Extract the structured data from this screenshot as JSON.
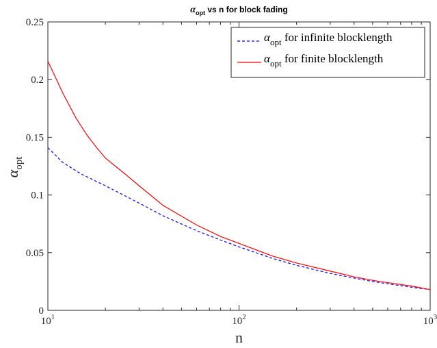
{
  "chart_data": {
    "type": "line",
    "title_alpha": "α",
    "title_sub": "opt",
    "title_rest": " vs n for block fading",
    "xlabel": "n",
    "ylabel_alpha": "α",
    "ylabel_sub": "opt",
    "x_scale": "log",
    "xlim": [
      10,
      1000
    ],
    "ylim": [
      0,
      0.25
    ],
    "grid": false,
    "legend_position": "top-right",
    "x_ticks": [
      {
        "value": 10,
        "base": "10",
        "exp": "1"
      },
      {
        "value": 100,
        "base": "10",
        "exp": "2"
      },
      {
        "value": 1000,
        "base": "10",
        "exp": "3"
      }
    ],
    "y_ticks": [
      {
        "value": 0,
        "label": "0"
      },
      {
        "value": 0.05,
        "label": "0.05"
      },
      {
        "value": 0.1,
        "label": "0.1"
      },
      {
        "value": 0.15,
        "label": "0.15"
      },
      {
        "value": 0.2,
        "label": "0.2"
      },
      {
        "value": 0.25,
        "label": "0.25"
      }
    ],
    "series": [
      {
        "name_alpha": "α",
        "name_sub": "opt",
        "name_rest": " for infinite blocklength",
        "color": "#0000ff",
        "dash": "dashed",
        "x": [
          10,
          12,
          15,
          20,
          30,
          40,
          60,
          80,
          100,
          150,
          200,
          300,
          400,
          500,
          600,
          800,
          1000
        ],
        "y": [
          0.141,
          0.128,
          0.118,
          0.108,
          0.093,
          0.082,
          0.069,
          0.061,
          0.055,
          0.045,
          0.039,
          0.032,
          0.028,
          0.025,
          0.023,
          0.02,
          0.018
        ]
      },
      {
        "name_alpha": "α",
        "name_sub": "opt",
        "name_rest": " for finite blocklength",
        "color": "#ff0000",
        "dash": "solid",
        "x": [
          10,
          12,
          14,
          16,
          18,
          20,
          25,
          30,
          40,
          60,
          80,
          100,
          150,
          200,
          300,
          400,
          500,
          600,
          800,
          1000
        ],
        "y": [
          0.216,
          0.188,
          0.167,
          0.152,
          0.141,
          0.132,
          0.119,
          0.108,
          0.091,
          0.074,
          0.064,
          0.058,
          0.047,
          0.041,
          0.034,
          0.029,
          0.026,
          0.024,
          0.021,
          0.018
        ]
      }
    ]
  }
}
